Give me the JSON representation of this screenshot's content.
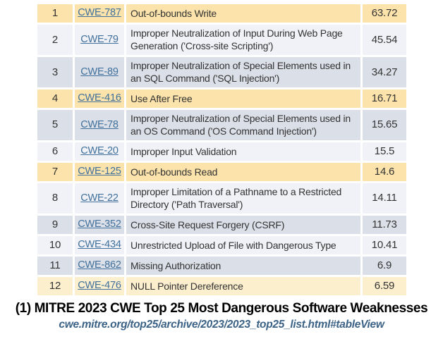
{
  "colors": {
    "row_highlight": "#FBE3AB",
    "row_highlight_soft": "#FCEFCD",
    "row_light": "#F0F2F7",
    "row_gray": "#DBDFE8",
    "link": "#41719C",
    "cell_text": "#333333",
    "caption_text": "#000000",
    "url_text": "#3C6386"
  },
  "table": {
    "rows": [
      {
        "rank": "1",
        "cwe": "CWE-787",
        "name": "Out-of-bounds Write",
        "score": "63.72",
        "tone": "highlight"
      },
      {
        "rank": "2",
        "cwe": "CWE-79",
        "name": "Improper Neutralization of Input During Web Page Generation ('Cross-site Scripting')",
        "score": "45.54",
        "tone": "light"
      },
      {
        "rank": "3",
        "cwe": "CWE-89",
        "name": "Improper Neutralization of Special Elements used in an SQL Command ('SQL Injection')",
        "score": "34.27",
        "tone": "gray"
      },
      {
        "rank": "4",
        "cwe": "CWE-416",
        "name": "Use After Free",
        "score": "16.71",
        "tone": "highlight"
      },
      {
        "rank": "5",
        "cwe": "CWE-78",
        "name": "Improper Neutralization of Special Elements used in an OS Command ('OS Command Injection')",
        "score": "15.65",
        "tone": "gray"
      },
      {
        "rank": "6",
        "cwe": "CWE-20",
        "name": "Improper Input Validation",
        "score": "15.5",
        "tone": "light"
      },
      {
        "rank": "7",
        "cwe": "CWE-125",
        "name": "Out-of-bounds Read",
        "score": "14.6",
        "tone": "highlight"
      },
      {
        "rank": "8",
        "cwe": "CWE-22",
        "name": "Improper Limitation of a Pathname to a Restricted Directory ('Path Traversal')",
        "score": "14.11",
        "tone": "light"
      },
      {
        "rank": "9",
        "cwe": "CWE-352",
        "name": "Cross-Site Request Forgery (CSRF)",
        "score": "11.73",
        "tone": "gray"
      },
      {
        "rank": "10",
        "cwe": "CWE-434",
        "name": "Unrestricted Upload of File with Dangerous Type",
        "score": "10.41",
        "tone": "light"
      },
      {
        "rank": "11",
        "cwe": "CWE-862",
        "name": "Missing Authorization",
        "score": "6.9",
        "tone": "gray"
      },
      {
        "rank": "12",
        "cwe": "CWE-476",
        "name": "NULL Pointer Dereference",
        "score": "6.59",
        "tone": "highlight_soft"
      }
    ]
  },
  "caption": {
    "title": "(1) MITRE 2023 CWE Top 25 Most Dangerous Software Weaknesses",
    "url": "cwe.mitre.org/top25/archive/2023/2023_top25_list.html#tableView"
  },
  "chart_data": {
    "type": "table",
    "title": "(1) MITRE 2023 CWE Top 25 Most Dangerous Software Weaknesses",
    "url": "cwe.mitre.org/top25/archive/2023/2023_top25_list.html#tableView",
    "columns": [
      "Rank",
      "ID",
      "Name",
      "Score"
    ],
    "rows": [
      [
        1,
        "CWE-787",
        "Out-of-bounds Write",
        63.72
      ],
      [
        2,
        "CWE-79",
        "Improper Neutralization of Input During Web Page Generation ('Cross-site Scripting')",
        45.54
      ],
      [
        3,
        "CWE-89",
        "Improper Neutralization of Special Elements used in an SQL Command ('SQL Injection')",
        34.27
      ],
      [
        4,
        "CWE-416",
        "Use After Free",
        16.71
      ],
      [
        5,
        "CWE-78",
        "Improper Neutralization of Special Elements used in an OS Command ('OS Command Injection')",
        15.65
      ],
      [
        6,
        "CWE-20",
        "Improper Input Validation",
        15.5
      ],
      [
        7,
        "CWE-125",
        "Out-of-bounds Read",
        14.6
      ],
      [
        8,
        "CWE-22",
        "Improper Limitation of a Pathname to a Restricted Directory ('Path Traversal')",
        14.11
      ],
      [
        9,
        "CWE-352",
        "Cross-Site Request Forgery (CSRF)",
        11.73
      ],
      [
        10,
        "CWE-434",
        "Unrestricted Upload of File with Dangerous Type",
        10.41
      ],
      [
        11,
        "CWE-862",
        "Missing Authorization",
        6.9
      ],
      [
        12,
        "CWE-476",
        "NULL Pointer Dereference",
        6.59
      ]
    ],
    "highlighted_ranks": [
      1,
      4,
      7,
      12
    ]
  }
}
